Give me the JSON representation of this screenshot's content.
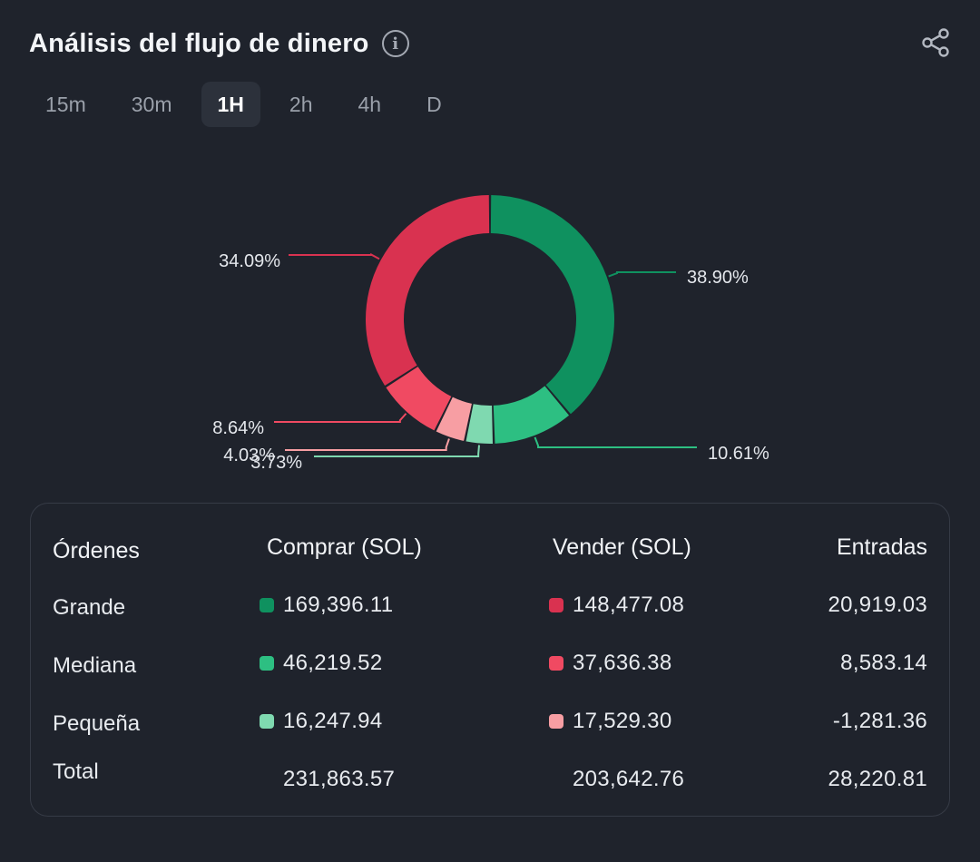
{
  "header": {
    "title": "Análisis del flujo de dinero",
    "info_icon": "info-icon",
    "share_icon": "share-icon"
  },
  "tabs": [
    {
      "label": "15m",
      "active": false
    },
    {
      "label": "30m",
      "active": false
    },
    {
      "label": "1H",
      "active": true
    },
    {
      "label": "2h",
      "active": false
    },
    {
      "label": "4h",
      "active": false
    },
    {
      "label": "D",
      "active": false
    }
  ],
  "chart_data": {
    "type": "pie",
    "slices": [
      {
        "label": "38.90%",
        "value": 38.9,
        "color": "#0f915f"
      },
      {
        "label": "10.61%",
        "value": 10.61,
        "color": "#2dbf82"
      },
      {
        "label": "3.73%",
        "value": 3.73,
        "color": "#7fd9b0"
      },
      {
        "label": "4.03%",
        "value": 4.03,
        "color": "#f79ea3"
      },
      {
        "label": "8.64%",
        "value": 8.64,
        "color": "#f04a62"
      },
      {
        "label": "34.09%",
        "value": 34.09,
        "color": "#d93250"
      }
    ]
  },
  "table": {
    "headers": {
      "orders": "Órdenes",
      "buy": "Comprar (SOL)",
      "sell": "Vender (SOL)",
      "net": "Entradas"
    },
    "rows": [
      {
        "label": "Grande",
        "buy": "169,396.11",
        "sell": "148,477.08",
        "net": "20,919.03",
        "buy_color": "#0f915f",
        "sell_color": "#d93250"
      },
      {
        "label": "Mediana",
        "buy": "46,219.52",
        "sell": "37,636.38",
        "net": "8,583.14",
        "buy_color": "#2dbf82",
        "sell_color": "#f04a62"
      },
      {
        "label": "Pequeña",
        "buy": "16,247.94",
        "sell": "17,529.30",
        "net": "-1,281.36",
        "buy_color": "#7fd9b0",
        "sell_color": "#f79ea3"
      }
    ],
    "total": {
      "label": "Total",
      "buy": "231,863.57",
      "sell": "203,642.76",
      "net": "28,220.81"
    }
  }
}
